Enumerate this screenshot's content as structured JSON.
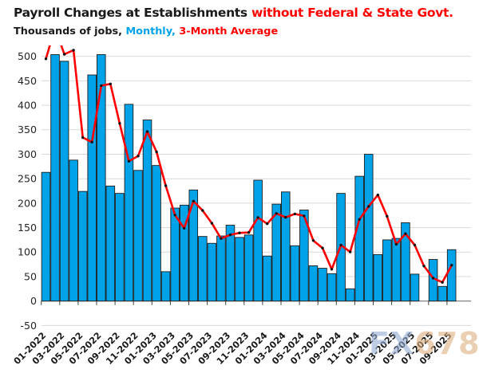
{
  "header": {
    "title_main": "Payroll Changes at Establishments ",
    "title_highlight": "without Federal & State Govt.",
    "subtitle_prefix": "Thousands of jobs, ",
    "subtitle_monthly": "Monthly, ",
    "subtitle_average": "3-Month Average"
  },
  "watermark": {
    "fx": "FX",
    "num": "678"
  },
  "colors": {
    "bar_fill": "#00a2e8",
    "bar_border": "#1f1f1f",
    "line": "#ff0000",
    "marker": "#111111",
    "grid": "#d9d9d9",
    "zero_axis": "#8c8c8c",
    "tick": "#404040",
    "axis_text": "#262626",
    "title_accent": "#ff0000"
  },
  "chart_data": {
    "type": "bar",
    "title": "Payroll Changes at Establishments without Federal & State Govt.",
    "subtitle": "Thousands of jobs, Monthly, 3-Month Average",
    "xlabel": "",
    "ylabel": "Thousands of jobs",
    "ylim": [
      -50,
      500
    ],
    "ytick_step": 50,
    "grid": true,
    "legend_position": "none",
    "bars_clipped_at_top": [
      "02-2022",
      "07-2022"
    ],
    "categories": [
      "01-2022",
      "02-2022",
      "03-2022",
      "04-2022",
      "05-2022",
      "06-2022",
      "07-2022",
      "08-2022",
      "09-2022",
      "10-2022",
      "11-2022",
      "12-2022",
      "01-2023",
      "02-2023",
      "03-2023",
      "04-2023",
      "05-2023",
      "06-2023",
      "07-2023",
      "08-2023",
      "09-2023",
      "10-2023",
      "11-2023",
      "12-2023",
      "01-2024",
      "02-2024",
      "03-2024",
      "04-2024",
      "05-2024",
      "06-2024",
      "07-2024",
      "08-2024",
      "09-2024",
      "10-2024",
      "11-2024",
      "12-2024",
      "01-2025",
      "02-2025",
      "03-2025",
      "04-2025",
      "05-2025",
      "06-2025",
      "07-2025",
      "08-2025",
      "09-2025"
    ],
    "x_tick_labels": [
      "01-2022",
      "03-2022",
      "05-2022",
      "07-2022",
      "09-2022",
      "11-2022",
      "01-2023",
      "03-2023",
      "05-2023",
      "07-2023",
      "09-2023",
      "11-2023",
      "01-2024",
      "03-2024",
      "05-2024",
      "07-2024",
      "09-2024",
      "11-2024",
      "01-2025",
      "03-2025",
      "05-2025",
      "07-2025",
      "09-2025"
    ],
    "series": [
      {
        "name": "Monthly",
        "type": "bar",
        "color": "#00a2e8",
        "values": [
          263,
          500,
          490,
          288,
          224,
          462,
          500,
          235,
          220,
          402,
          267,
          370,
          277,
          60,
          190,
          196,
          227,
          132,
          118,
          133,
          155,
          130,
          135,
          247,
          92,
          198,
          223,
          113,
          186,
          72,
          67,
          56,
          220,
          25,
          255,
          300,
          95,
          125,
          128,
          160,
          55,
          0,
          85,
          30,
          105
        ]
      },
      {
        "name": "3-Month Average",
        "type": "line",
        "color": "#ff0000",
        "values": [
          495.0,
          558.3,
          504.3,
          512.7,
          334.0,
          324.7,
          440.0,
          443.7,
          363.0,
          285.7,
          296.3,
          346.3,
          304.7,
          235.7,
          175.7,
          148.7,
          204.3,
          185.0,
          159.0,
          127.7,
          135.3,
          139.3,
          140.0,
          170.7,
          158.0,
          179.0,
          171.0,
          178.0,
          174.0,
          123.7,
          108.3,
          65.0,
          114.3,
          100.3,
          166.7,
          193.3,
          216.7,
          173.3,
          116.0,
          137.7,
          114.3,
          71.7,
          46.7,
          38.3,
          73.3
        ]
      }
    ]
  }
}
